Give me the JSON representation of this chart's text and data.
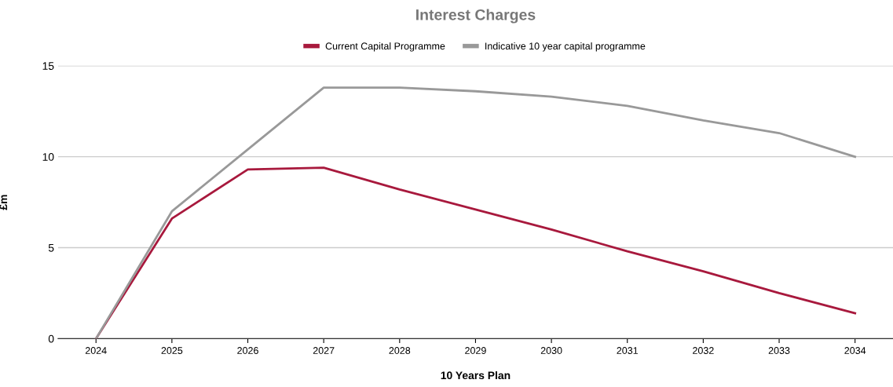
{
  "chart_data": {
    "type": "line",
    "title": "Interest Charges",
    "xlabel": "10 Years Plan",
    "ylabel": "£m",
    "categories": [
      "2024",
      "2025",
      "2026",
      "2027",
      "2028",
      "2029",
      "2030",
      "2031",
      "2032",
      "2033",
      "2034"
    ],
    "series": [
      {
        "name": "Current Capital Programme",
        "color": "#a8193d",
        "values": [
          0,
          6.6,
          9.3,
          9.4,
          8.2,
          7.1,
          6.0,
          4.8,
          3.7,
          2.5,
          1.4
        ]
      },
      {
        "name": "Indicative 10 year capital programme",
        "color": "#999999",
        "values": [
          0,
          7.0,
          10.4,
          13.8,
          13.8,
          13.6,
          13.3,
          12.8,
          12.0,
          11.3,
          10.0
        ]
      }
    ],
    "ylim": [
      0,
      15
    ],
    "yticks": [
      0,
      5,
      10,
      15
    ],
    "grid": "y",
    "legend": "top",
    "marker": "none",
    "line_style": "solid"
  }
}
